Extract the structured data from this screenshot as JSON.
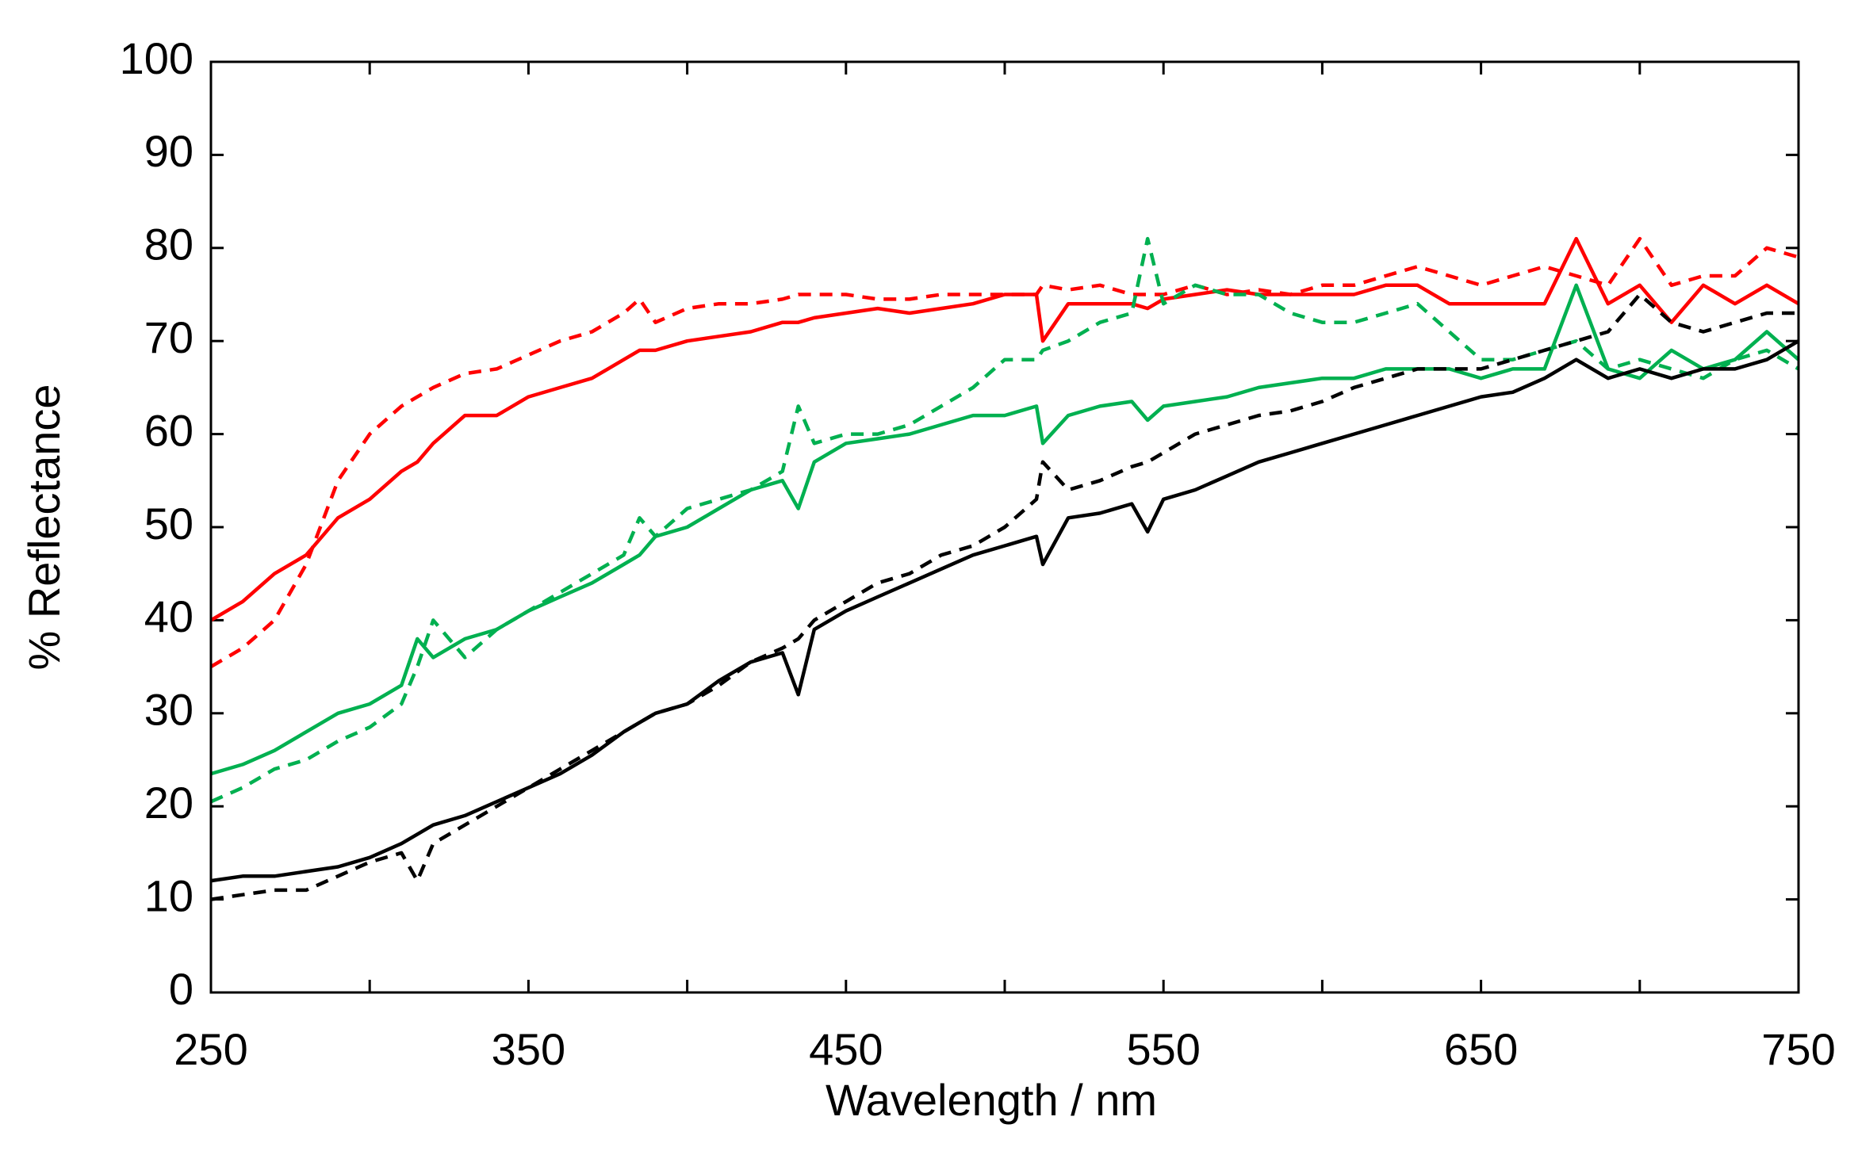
{
  "chart_data": {
    "type": "line",
    "x_label": "Wavelength / nm",
    "y_label": "% Reflectance",
    "xlim": [
      250,
      750
    ],
    "xticks": [
      250,
      350,
      450,
      550,
      650,
      750
    ],
    "xminorticks": [
      300,
      400,
      500,
      600,
      700
    ],
    "ylim": [
      0,
      100
    ],
    "yticks": [
      0,
      10,
      20,
      30,
      40,
      50,
      60,
      70,
      80,
      90,
      100
    ],
    "grid": false,
    "x": [
      250,
      260,
      270,
      280,
      290,
      300,
      310,
      315,
      320,
      330,
      340,
      350,
      360,
      370,
      380,
      385,
      390,
      400,
      410,
      420,
      430,
      435,
      440,
      450,
      460,
      470,
      480,
      490,
      500,
      510,
      512,
      520,
      530,
      540,
      545,
      550,
      560,
      570,
      580,
      590,
      600,
      610,
      620,
      630,
      640,
      650,
      660,
      670,
      680,
      690,
      700,
      710,
      720,
      730,
      740,
      750
    ],
    "series": [
      {
        "color": "#ff0000",
        "dash": false,
        "values": [
          40,
          42,
          45,
          47,
          51,
          53,
          56,
          57,
          59,
          62,
          62,
          64,
          65,
          66,
          68,
          69,
          69,
          70,
          70.5,
          71,
          72,
          72,
          72.5,
          73,
          73.5,
          73,
          73.5,
          74,
          75,
          75,
          70,
          74,
          74,
          74,
          73.5,
          74.5,
          75,
          75.5,
          75,
          75,
          75,
          75,
          76,
          76,
          74,
          74,
          74,
          74,
          81,
          74,
          76,
          72,
          76,
          74,
          76,
          74
        ]
      },
      {
        "color": "#ff0000",
        "dash": true,
        "values": [
          35,
          37,
          40,
          46,
          55,
          60,
          63,
          64,
          65,
          66.5,
          67,
          68.5,
          70,
          71,
          73,
          74.5,
          72,
          73.5,
          74,
          74,
          74.5,
          75,
          75,
          75,
          74.5,
          74.5,
          75,
          75,
          75,
          75,
          76,
          75.5,
          76,
          75,
          75,
          75,
          76,
          75,
          75.5,
          75,
          76,
          76,
          77,
          78,
          77,
          76,
          77,
          78,
          77,
          76,
          81,
          76,
          77,
          77,
          80,
          79
        ]
      },
      {
        "color": "#00b050",
        "dash": false,
        "values": [
          23.5,
          24.5,
          26,
          28,
          30,
          31,
          33,
          38,
          36,
          38,
          39,
          41,
          42.5,
          44,
          46,
          47,
          49,
          50,
          52,
          54,
          55,
          52,
          57,
          59,
          59.5,
          60,
          61,
          62,
          62,
          63,
          59,
          62,
          63,
          63.5,
          61.5,
          63,
          63.5,
          64,
          65,
          65.5,
          66,
          66,
          67,
          67,
          67,
          66,
          67,
          67,
          76,
          67,
          66,
          69,
          67,
          68,
          71,
          68
        ]
      },
      {
        "color": "#00b050",
        "dash": true,
        "values": [
          20.5,
          22,
          24,
          25,
          27,
          28.5,
          31,
          35,
          40,
          36,
          39,
          41,
          43,
          45,
          47,
          51,
          49,
          52,
          53,
          54,
          56,
          63,
          59,
          60,
          60,
          61,
          63,
          65,
          68,
          68,
          69,
          70,
          72,
          73,
          81,
          74,
          76,
          75,
          75,
          73,
          72,
          72,
          73,
          74,
          71,
          68,
          68,
          69,
          70,
          67,
          68,
          67,
          66,
          68,
          69,
          67
        ]
      },
      {
        "color": "#000000",
        "dash": false,
        "values": [
          12,
          12.5,
          12.5,
          13,
          13.5,
          14.5,
          16,
          17,
          18,
          19,
          20.5,
          22,
          23.5,
          25.5,
          28,
          29,
          30,
          31,
          33.5,
          35.5,
          36.5,
          32,
          39,
          41,
          42.5,
          44,
          45.5,
          47,
          48,
          49,
          46,
          51,
          51.5,
          52.5,
          49.5,
          53,
          54,
          55.5,
          57,
          58,
          59,
          60,
          61,
          62,
          63,
          64,
          64.5,
          66,
          68,
          66,
          67,
          66,
          67,
          67,
          68,
          70
        ]
      },
      {
        "color": "#000000",
        "dash": true,
        "values": [
          10,
          10.5,
          11,
          11,
          12.5,
          14,
          15,
          12,
          16,
          18,
          20,
          22,
          24,
          26,
          28,
          29,
          30,
          31,
          33,
          35.5,
          37,
          38,
          40,
          42,
          44,
          45,
          47,
          48,
          50,
          53,
          57,
          54,
          55,
          56.5,
          57,
          58,
          60,
          61,
          62,
          62.5,
          63.5,
          65,
          66,
          67,
          67,
          67,
          68,
          69,
          70,
          71,
          75,
          72,
          71,
          72,
          73,
          73
        ]
      }
    ]
  }
}
